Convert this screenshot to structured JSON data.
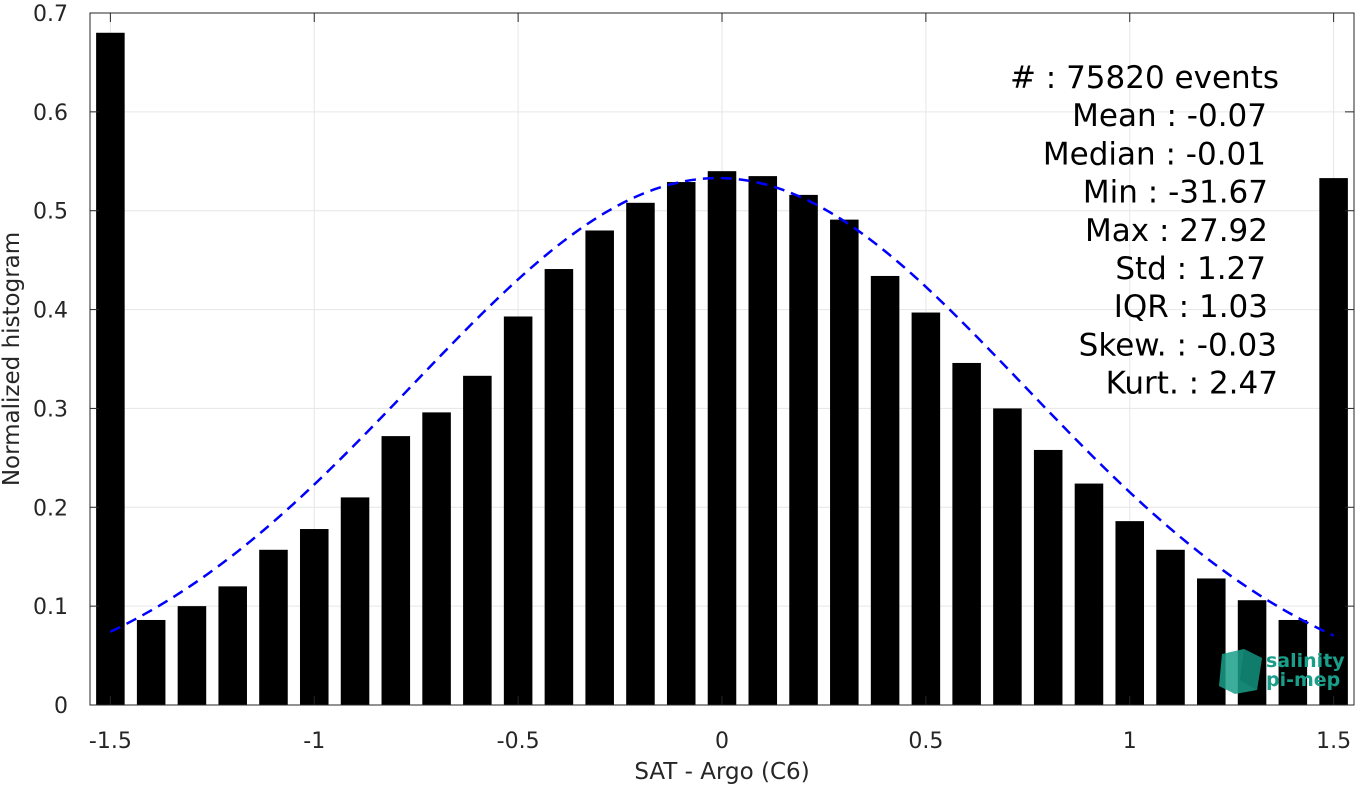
{
  "chart_data": {
    "type": "bar",
    "xlabel": "SAT - Argo (C6)",
    "ylabel": "Normalized histogram",
    "xlim": [
      -1.55,
      1.55
    ],
    "ylim": [
      0,
      0.7
    ],
    "grid": true,
    "x_ticks": [
      -1.5,
      -1,
      -0.5,
      0,
      0.5,
      1,
      1.5
    ],
    "x_tick_labels": [
      "-1.5",
      "-1",
      "-0.5",
      "0",
      "0.5",
      "1",
      "1.5"
    ],
    "y_ticks": [
      0,
      0.1,
      0.2,
      0.3,
      0.4,
      0.5,
      0.6,
      0.7
    ],
    "y_tick_labels": [
      "0",
      "0.1",
      "0.2",
      "0.3",
      "0.4",
      "0.5",
      "0.6",
      "0.7"
    ],
    "bar_width": 0.07,
    "bars": {
      "x": [
        -1.5,
        -1.4,
        -1.3,
        -1.2,
        -1.1,
        -1.0,
        -0.9,
        -0.8,
        -0.7,
        -0.6,
        -0.5,
        -0.4,
        -0.3,
        -0.2,
        -0.1,
        0.0,
        0.1,
        0.2,
        0.3,
        0.4,
        0.5,
        0.6,
        0.7,
        0.8,
        0.9,
        1.0,
        1.1,
        1.2,
        1.3,
        1.4,
        1.5
      ],
      "values": [
        0.68,
        0.086,
        0.1,
        0.12,
        0.157,
        0.178,
        0.21,
        0.272,
        0.296,
        0.333,
        0.393,
        0.441,
        0.48,
        0.508,
        0.529,
        0.54,
        0.535,
        0.516,
        0.491,
        0.434,
        0.397,
        0.346,
        0.3,
        0.258,
        0.224,
        0.186,
        0.157,
        0.128,
        0.106,
        0.086,
        0.533
      ],
      "color": "#000000"
    },
    "gaussian_fit": {
      "mean": -0.01,
      "std": 0.75,
      "peak": 0.533,
      "x_range": [
        -1.5,
        1.5
      ],
      "color": "#0000ff",
      "style": "dashed"
    },
    "annotations": [
      "#  : 75820 events",
      "Mean : -0.07",
      "Median : -0.01",
      "Min : -31.67",
      "Max : 27.92",
      "Std : 1.27",
      "IQR : 1.03",
      "Skew. : -0.03",
      "Kurt. : 2.47"
    ]
  },
  "logo": {
    "line1": "salinity",
    "line2": "pi-mep",
    "color": "#1a9e8a"
  }
}
